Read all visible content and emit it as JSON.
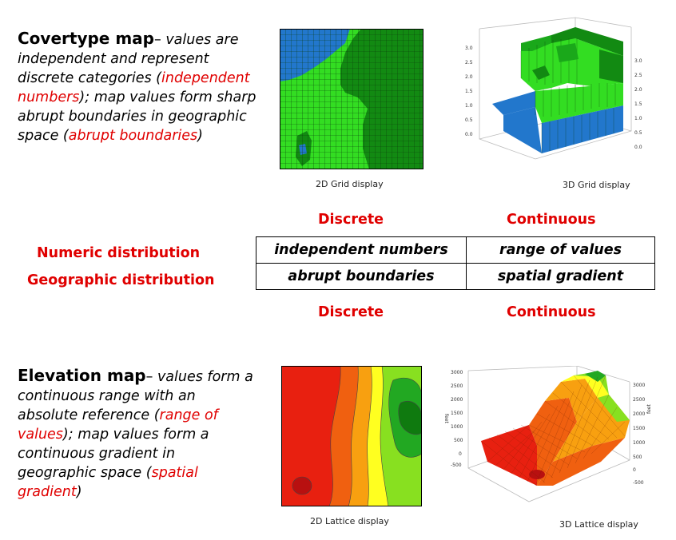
{
  "covertype": {
    "title": "Covertype map",
    "dash": "– ",
    "t1": "values are independent and represent discrete categories (",
    "r1": "independent numbers",
    "t2": "); map values form sharp abrupt boundaries in geographic space (",
    "r2": "abrupt boundaries",
    "t3": ")"
  },
  "elevation": {
    "title": "Elevation map",
    "dash": "– ",
    "t1": "values form a continuous range with an absolute reference (",
    "r1": "range of values",
    "t2": "); map values form a continuous gradient in geographic space (",
    "r2": "spatial gradient",
    "t3": ")"
  },
  "captions": {
    "grid2d": "2D Grid display",
    "grid3d": "3D Grid display",
    "lattice2d": "2D Lattice display",
    "lattice3d": "3D Lattice display"
  },
  "matrix": {
    "col_top_left": "Discrete",
    "col_top_right": "Continuous",
    "col_bottom_left": "Discrete",
    "col_bottom_right": "Continuous",
    "row1_label": "Numeric distribution",
    "row2_label": "Geographic distribution",
    "cells": [
      [
        "independent numbers",
        "range of values"
      ],
      [
        "abrupt boundaries",
        "spatial gradient"
      ]
    ]
  },
  "axes": {
    "grid3d_left": [
      "3.0",
      "2.5",
      "2.0",
      "1.5",
      "1.0",
      "0.5",
      "0.0"
    ],
    "grid3d_right": [
      "3.0",
      "2.5",
      "2.0",
      "1.5",
      "1.0",
      "0.5",
      "0.0"
    ],
    "lat3d_left": [
      "3000",
      "2500",
      "2000",
      "1500",
      "1000",
      "500",
      "0",
      "-500"
    ],
    "lat3d_right": [
      "3000",
      "2500",
      "2000",
      "1500",
      "1000",
      "500",
      "0",
      "-500"
    ],
    "lat3d_unit_left": "feet",
    "lat3d_unit_right": "feet"
  },
  "colors": {
    "accent_red": "#e00000",
    "cover_blue": "#2277cc",
    "cover_light_green": "#33dd22",
    "cover_dark_green": "#128a12"
  }
}
